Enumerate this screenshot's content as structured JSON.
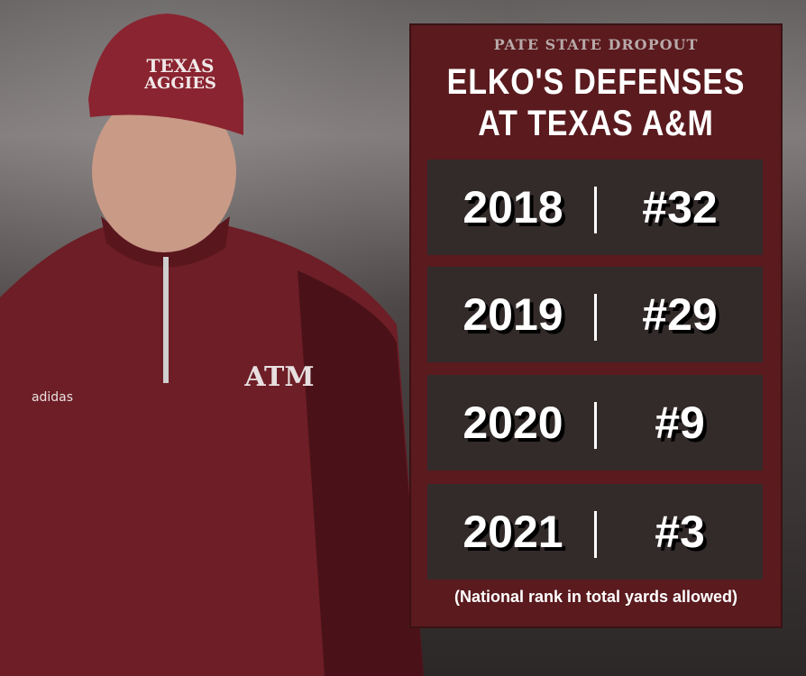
{
  "header": {
    "kicker": "PATE STATE DROPOUT",
    "title_line1": "ELKO'S DEFENSES",
    "title_line2": "AT TEXAS A&M"
  },
  "rows": [
    {
      "year": "2018",
      "rank": "#32"
    },
    {
      "year": "2019",
      "rank": "#29"
    },
    {
      "year": "2020",
      "rank": "#9"
    },
    {
      "year": "2021",
      "rank": "#3"
    }
  ],
  "footnote": "(National rank in total yards allowed)",
  "photo": {
    "cap_logo": "TEXAS AGGIES",
    "chest_logo": "ATM",
    "sleeve_logo": "adidas"
  },
  "colors": {
    "panel": "#5a1a1e",
    "row": "#332a2a",
    "maroon_apparel": "#6e1e26"
  }
}
